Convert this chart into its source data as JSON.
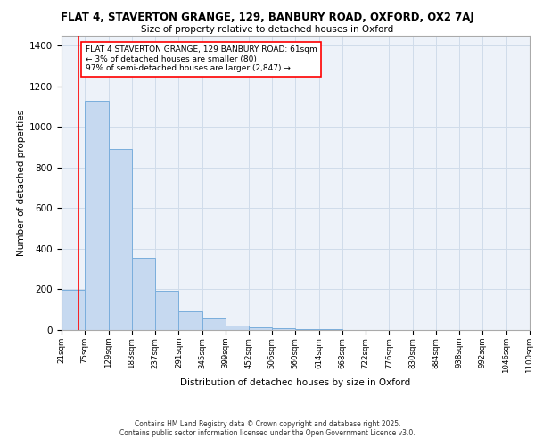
{
  "title_line1": "FLAT 4, STAVERTON GRANGE, 129, BANBURY ROAD, OXFORD, OX2 7AJ",
  "title_line2": "Size of property relative to detached houses in Oxford",
  "xlabel": "Distribution of detached houses by size in Oxford",
  "ylabel": "Number of detached properties",
  "bar_edges": [
    21,
    75,
    129,
    183,
    237,
    291,
    345,
    399,
    452,
    506,
    560,
    614,
    668,
    722,
    776,
    830,
    884,
    938,
    992,
    1046,
    1100
  ],
  "bar_heights": [
    197,
    1128,
    893,
    354,
    194,
    93,
    56,
    20,
    15,
    8,
    5,
    3,
    2,
    2,
    1,
    1,
    1,
    0,
    0,
    1
  ],
  "bar_color": "#c6d9f0",
  "bar_edge_color": "#7aaedc",
  "grid_color": "#d0dcea",
  "background_color": "#edf2f9",
  "red_line_x": 61,
  "annotation_text": "FLAT 4 STAVERTON GRANGE, 129 BANBURY ROAD: 61sqm\n← 3% of detached houses are smaller (80)\n97% of semi-detached houses are larger (2,847) →",
  "footer_line1": "Contains HM Land Registry data © Crown copyright and database right 2025.",
  "footer_line2": "Contains public sector information licensed under the Open Government Licence v3.0.",
  "ylim": [
    0,
    1450
  ],
  "yticks": [
    0,
    200,
    400,
    600,
    800,
    1000,
    1200,
    1400
  ],
  "tick_labels": [
    "21sqm",
    "75sqm",
    "129sqm",
    "183sqm",
    "237sqm",
    "291sqm",
    "345sqm",
    "399sqm",
    "452sqm",
    "506sqm",
    "560sqm",
    "614sqm",
    "668sqm",
    "722sqm",
    "776sqm",
    "830sqm",
    "884sqm",
    "938sqm",
    "992sqm",
    "1046sqm",
    "1100sqm"
  ]
}
